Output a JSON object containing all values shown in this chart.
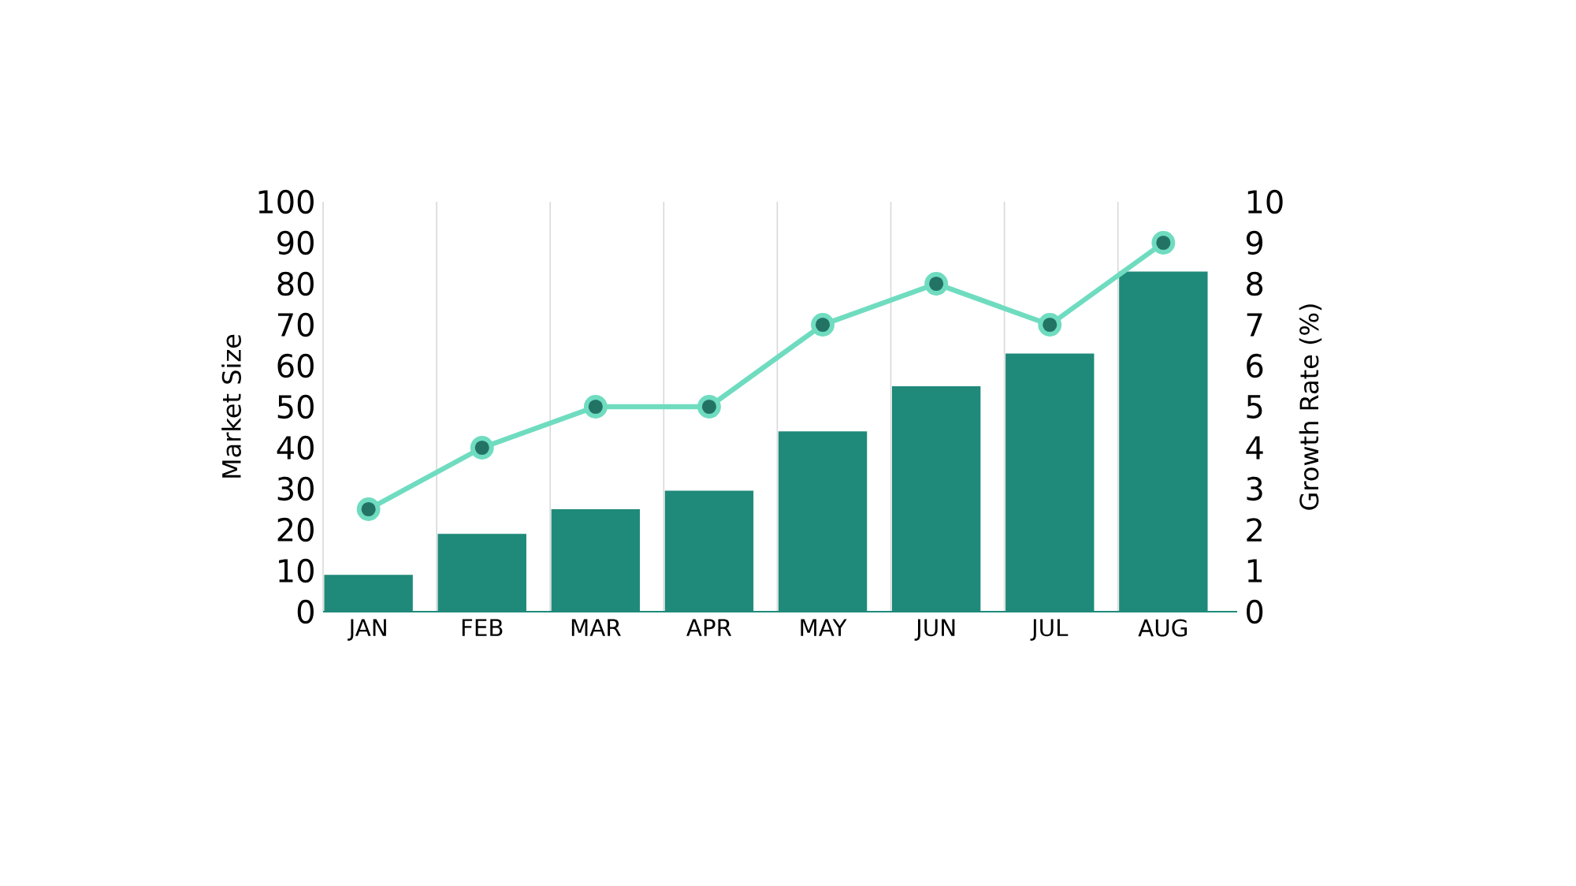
{
  "chart_data": {
    "type": "bar",
    "ylabel": "Market Size",
    "y2label": "Growth Rate (%)",
    "categories": [
      "JAN",
      "FEB",
      "MAR",
      "APR",
      "MAY",
      "JUN",
      "JUL",
      "AUG"
    ],
    "series": [
      {
        "color": "#1f8a7a",
        "values": [
          9,
          19,
          25,
          29.5,
          44,
          55,
          63,
          83
        ]
      },
      {
        "type": "line",
        "axis": "y2",
        "color": "#6fdcc0",
        "marker": "circle",
        "values": [
          2.5,
          4,
          5,
          5,
          7,
          8,
          7,
          9
        ]
      }
    ],
    "ylim": [
      0,
      100
    ],
    "yticks": [
      0,
      10,
      20,
      30,
      40,
      50,
      60,
      70,
      80,
      90,
      100
    ],
    "y2lim": [
      0,
      10
    ],
    "y2ticks": [
      0,
      1,
      2,
      3,
      4,
      5,
      6,
      7,
      8,
      9,
      10
    ],
    "grid": "x"
  }
}
